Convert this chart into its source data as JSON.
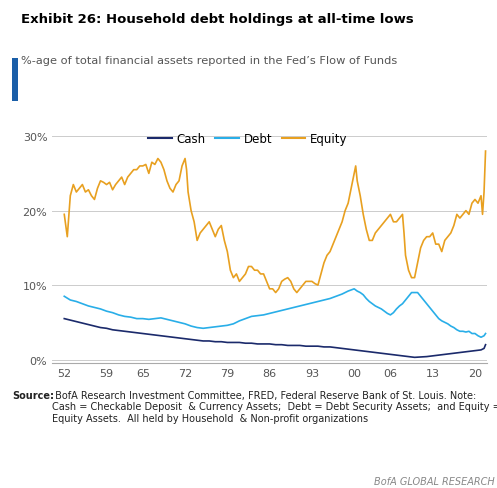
{
  "title": "Exhibit 26: Household debt holdings at all-time lows",
  "subtitle": "%-age of total financial assets reported in the Fed’s Flow of Funds",
  "source_label": "Source:",
  "source_body": " BofA Research Investment Committee, FRED, Federal Reserve Bank of St. Louis. Note:\nCash = Checkable Deposit  & Currency Assets;  Debt = Debt Security Assets;  and Equity = Corporate\nEquity Assets.  All held by Household  & Non-profit organizations",
  "branding": "BofA GLOBAL RESEARCH",
  "x_ticks": [
    52,
    59,
    65,
    72,
    79,
    86,
    93,
    100,
    106,
    113,
    120
  ],
  "x_tick_labels": [
    "52",
    "59",
    "65",
    "72",
    "79",
    "86",
    "93",
    "00",
    "06",
    "13",
    "20"
  ],
  "y_ticks": [
    0,
    10,
    20,
    30
  ],
  "y_tick_labels": [
    "0%",
    "10%",
    "20%",
    "30%"
  ],
  "ylim": [
    -0.5,
    32
  ],
  "xlim": [
    50,
    122
  ],
  "colors": {
    "cash": "#1b2a6b",
    "debt": "#29aee8",
    "equity": "#e8a020",
    "title_bar": "#1a5ea8",
    "grid": "#cccccc",
    "background": "#ffffff",
    "tick_label": "#555555",
    "source_text": "#222222",
    "branding": "#888888"
  },
  "equity_data": [
    [
      52,
      19.5
    ],
    [
      52.5,
      16.5
    ],
    [
      53,
      22.0
    ],
    [
      53.5,
      23.5
    ],
    [
      54,
      22.5
    ],
    [
      54.5,
      23.0
    ],
    [
      55,
      23.5
    ],
    [
      55.5,
      22.5
    ],
    [
      56,
      22.8
    ],
    [
      56.5,
      22.0
    ],
    [
      57,
      21.5
    ],
    [
      57.5,
      23.0
    ],
    [
      58,
      24.0
    ],
    [
      58.5,
      23.8
    ],
    [
      59,
      23.5
    ],
    [
      59.5,
      23.8
    ],
    [
      60,
      22.8
    ],
    [
      60.5,
      23.5
    ],
    [
      61,
      24.0
    ],
    [
      61.5,
      24.5
    ],
    [
      62,
      23.5
    ],
    [
      62.5,
      24.5
    ],
    [
      63,
      25.0
    ],
    [
      63.5,
      25.5
    ],
    [
      64,
      25.5
    ],
    [
      64.5,
      26.0
    ],
    [
      65,
      26.0
    ],
    [
      65.5,
      26.2
    ],
    [
      66,
      25.0
    ],
    [
      66.5,
      26.5
    ],
    [
      67,
      26.2
    ],
    [
      67.5,
      27.0
    ],
    [
      68,
      26.5
    ],
    [
      68.5,
      25.5
    ],
    [
      69,
      24.0
    ],
    [
      69.5,
      23.0
    ],
    [
      70,
      22.5
    ],
    [
      70.5,
      23.5
    ],
    [
      71,
      24.0
    ],
    [
      71.5,
      26.0
    ],
    [
      72,
      27.0
    ],
    [
      72.25,
      25.5
    ],
    [
      72.5,
      22.5
    ],
    [
      73,
      20.0
    ],
    [
      73.5,
      18.5
    ],
    [
      74,
      16.0
    ],
    [
      74.5,
      17.0
    ],
    [
      75,
      17.5
    ],
    [
      75.5,
      18.0
    ],
    [
      76,
      18.5
    ],
    [
      76.5,
      17.5
    ],
    [
      77,
      16.5
    ],
    [
      77.5,
      17.5
    ],
    [
      78,
      18.0
    ],
    [
      78.5,
      16.0
    ],
    [
      79,
      14.5
    ],
    [
      79.5,
      12.0
    ],
    [
      80,
      11.0
    ],
    [
      80.5,
      11.5
    ],
    [
      81,
      10.5
    ],
    [
      81.5,
      11.0
    ],
    [
      82,
      11.5
    ],
    [
      82.5,
      12.5
    ],
    [
      83,
      12.5
    ],
    [
      83.5,
      12.0
    ],
    [
      84,
      12.0
    ],
    [
      84.5,
      11.5
    ],
    [
      85,
      11.5
    ],
    [
      85.5,
      10.5
    ],
    [
      86,
      9.5
    ],
    [
      86.5,
      9.5
    ],
    [
      87,
      9.0
    ],
    [
      87.5,
      9.5
    ],
    [
      88,
      10.5
    ],
    [
      88.5,
      10.8
    ],
    [
      89,
      11.0
    ],
    [
      89.5,
      10.5
    ],
    [
      90,
      9.5
    ],
    [
      90.5,
      9.0
    ],
    [
      91,
      9.5
    ],
    [
      91.5,
      10.0
    ],
    [
      92,
      10.5
    ],
    [
      92.5,
      10.5
    ],
    [
      93,
      10.5
    ],
    [
      93.5,
      10.2
    ],
    [
      94,
      10.0
    ],
    [
      94.5,
      11.5
    ],
    [
      95,
      13.0
    ],
    [
      95.5,
      14.0
    ],
    [
      96,
      14.5
    ],
    [
      96.5,
      15.5
    ],
    [
      97,
      16.5
    ],
    [
      97.5,
      17.5
    ],
    [
      98,
      18.5
    ],
    [
      98.5,
      20.0
    ],
    [
      99,
      21.0
    ],
    [
      99.5,
      23.0
    ],
    [
      100,
      25.0
    ],
    [
      100.25,
      26.0
    ],
    [
      100.5,
      24.0
    ],
    [
      101,
      22.0
    ],
    [
      101.5,
      19.5
    ],
    [
      102,
      17.5
    ],
    [
      102.5,
      16.0
    ],
    [
      103,
      16.0
    ],
    [
      103.5,
      17.0
    ],
    [
      104,
      17.5
    ],
    [
      104.5,
      18.0
    ],
    [
      105,
      18.5
    ],
    [
      105.5,
      19.0
    ],
    [
      106,
      19.5
    ],
    [
      106.5,
      18.5
    ],
    [
      107,
      18.5
    ],
    [
      107.5,
      19.0
    ],
    [
      108,
      19.5
    ],
    [
      108.25,
      17.0
    ],
    [
      108.5,
      14.0
    ],
    [
      109,
      12.0
    ],
    [
      109.5,
      11.0
    ],
    [
      110,
      11.0
    ],
    [
      110.5,
      13.0
    ],
    [
      111,
      15.0
    ],
    [
      111.5,
      16.0
    ],
    [
      112,
      16.5
    ],
    [
      112.5,
      16.5
    ],
    [
      113,
      17.0
    ],
    [
      113.5,
      15.5
    ],
    [
      114,
      15.5
    ],
    [
      114.5,
      14.5
    ],
    [
      115,
      16.0
    ],
    [
      115.5,
      16.5
    ],
    [
      116,
      17.0
    ],
    [
      116.5,
      18.0
    ],
    [
      117,
      19.5
    ],
    [
      117.5,
      19.0
    ],
    [
      118,
      19.5
    ],
    [
      118.5,
      20.0
    ],
    [
      119,
      19.5
    ],
    [
      119.5,
      21.0
    ],
    [
      120,
      21.5
    ],
    [
      120.5,
      21.0
    ],
    [
      121,
      22.0
    ],
    [
      121.25,
      19.5
    ],
    [
      121.5,
      22.5
    ],
    [
      121.75,
      28.0
    ]
  ],
  "debt_data": [
    [
      52,
      8.5
    ],
    [
      53,
      8.0
    ],
    [
      54,
      7.8
    ],
    [
      55,
      7.5
    ],
    [
      56,
      7.2
    ],
    [
      57,
      7.0
    ],
    [
      58,
      6.8
    ],
    [
      59,
      6.5
    ],
    [
      60,
      6.3
    ],
    [
      61,
      6.0
    ],
    [
      62,
      5.8
    ],
    [
      63,
      5.7
    ],
    [
      64,
      5.5
    ],
    [
      65,
      5.5
    ],
    [
      66,
      5.4
    ],
    [
      67,
      5.5
    ],
    [
      68,
      5.6
    ],
    [
      69,
      5.4
    ],
    [
      70,
      5.2
    ],
    [
      71,
      5.0
    ],
    [
      72,
      4.8
    ],
    [
      73,
      4.5
    ],
    [
      74,
      4.3
    ],
    [
      75,
      4.2
    ],
    [
      76,
      4.3
    ],
    [
      77,
      4.4
    ],
    [
      78,
      4.5
    ],
    [
      79,
      4.6
    ],
    [
      80,
      4.8
    ],
    [
      81,
      5.2
    ],
    [
      82,
      5.5
    ],
    [
      83,
      5.8
    ],
    [
      84,
      5.9
    ],
    [
      85,
      6.0
    ],
    [
      86,
      6.2
    ],
    [
      87,
      6.4
    ],
    [
      88,
      6.6
    ],
    [
      89,
      6.8
    ],
    [
      90,
      7.0
    ],
    [
      91,
      7.2
    ],
    [
      92,
      7.4
    ],
    [
      93,
      7.6
    ],
    [
      94,
      7.8
    ],
    [
      95,
      8.0
    ],
    [
      96,
      8.2
    ],
    [
      97,
      8.5
    ],
    [
      98,
      8.8
    ],
    [
      99,
      9.2
    ],
    [
      100,
      9.5
    ],
    [
      100.5,
      9.2
    ],
    [
      101,
      9.0
    ],
    [
      101.5,
      8.7
    ],
    [
      102,
      8.2
    ],
    [
      102.5,
      7.8
    ],
    [
      103,
      7.5
    ],
    [
      103.5,
      7.2
    ],
    [
      104,
      7.0
    ],
    [
      104.5,
      6.8
    ],
    [
      105,
      6.5
    ],
    [
      105.5,
      6.2
    ],
    [
      106,
      6.0
    ],
    [
      106.5,
      6.3
    ],
    [
      107,
      6.8
    ],
    [
      107.5,
      7.2
    ],
    [
      108,
      7.5
    ],
    [
      108.5,
      8.0
    ],
    [
      109,
      8.5
    ],
    [
      109.5,
      9.0
    ],
    [
      110,
      9.0
    ],
    [
      110.5,
      9.0
    ],
    [
      111,
      8.5
    ],
    [
      111.5,
      8.0
    ],
    [
      112,
      7.5
    ],
    [
      112.5,
      7.0
    ],
    [
      113,
      6.5
    ],
    [
      113.5,
      6.0
    ],
    [
      114,
      5.5
    ],
    [
      114.5,
      5.2
    ],
    [
      115,
      5.0
    ],
    [
      115.5,
      4.8
    ],
    [
      116,
      4.5
    ],
    [
      116.5,
      4.3
    ],
    [
      117,
      4.0
    ],
    [
      117.5,
      3.8
    ],
    [
      118,
      3.8
    ],
    [
      118.5,
      3.7
    ],
    [
      119,
      3.8
    ],
    [
      119.5,
      3.5
    ],
    [
      120,
      3.5
    ],
    [
      120.5,
      3.2
    ],
    [
      121,
      3.0
    ],
    [
      121.5,
      3.2
    ],
    [
      121.75,
      3.5
    ]
  ],
  "cash_data": [
    [
      52,
      5.5
    ],
    [
      53,
      5.3
    ],
    [
      54,
      5.1
    ],
    [
      55,
      4.9
    ],
    [
      56,
      4.7
    ],
    [
      57,
      4.5
    ],
    [
      58,
      4.3
    ],
    [
      59,
      4.2
    ],
    [
      60,
      4.0
    ],
    [
      61,
      3.9
    ],
    [
      62,
      3.8
    ],
    [
      63,
      3.7
    ],
    [
      64,
      3.6
    ],
    [
      65,
      3.5
    ],
    [
      66,
      3.4
    ],
    [
      67,
      3.3
    ],
    [
      68,
      3.2
    ],
    [
      69,
      3.1
    ],
    [
      70,
      3.0
    ],
    [
      71,
      2.9
    ],
    [
      72,
      2.8
    ],
    [
      73,
      2.7
    ],
    [
      74,
      2.6
    ],
    [
      75,
      2.5
    ],
    [
      76,
      2.5
    ],
    [
      77,
      2.4
    ],
    [
      78,
      2.4
    ],
    [
      79,
      2.3
    ],
    [
      80,
      2.3
    ],
    [
      81,
      2.3
    ],
    [
      82,
      2.2
    ],
    [
      83,
      2.2
    ],
    [
      84,
      2.1
    ],
    [
      85,
      2.1
    ],
    [
      86,
      2.1
    ],
    [
      87,
      2.0
    ],
    [
      88,
      2.0
    ],
    [
      89,
      1.9
    ],
    [
      90,
      1.9
    ],
    [
      91,
      1.9
    ],
    [
      92,
      1.8
    ],
    [
      93,
      1.8
    ],
    [
      94,
      1.8
    ],
    [
      95,
      1.7
    ],
    [
      96,
      1.7
    ],
    [
      97,
      1.6
    ],
    [
      98,
      1.5
    ],
    [
      99,
      1.4
    ],
    [
      100,
      1.3
    ],
    [
      101,
      1.2
    ],
    [
      102,
      1.1
    ],
    [
      103,
      1.0
    ],
    [
      104,
      0.9
    ],
    [
      105,
      0.8
    ],
    [
      106,
      0.7
    ],
    [
      107,
      0.6
    ],
    [
      108,
      0.5
    ],
    [
      109,
      0.4
    ],
    [
      110,
      0.3
    ],
    [
      111,
      0.35
    ],
    [
      112,
      0.4
    ],
    [
      113,
      0.5
    ],
    [
      114,
      0.6
    ],
    [
      115,
      0.7
    ],
    [
      116,
      0.8
    ],
    [
      117,
      0.9
    ],
    [
      118,
      1.0
    ],
    [
      119,
      1.1
    ],
    [
      120,
      1.2
    ],
    [
      121,
      1.3
    ],
    [
      121.5,
      1.5
    ],
    [
      121.75,
      2.0
    ]
  ]
}
